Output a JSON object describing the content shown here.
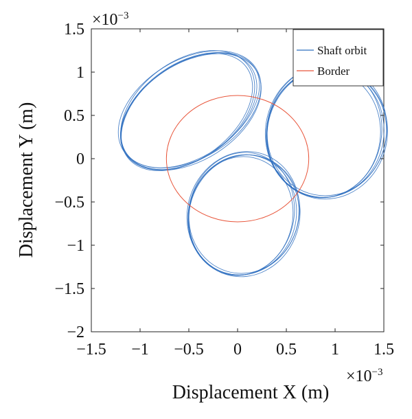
{
  "chart_data": {
    "type": "line",
    "xlabel": "Displacement X (m)",
    "ylabel": "Displacement Y (m)",
    "x_exponent_label": "×10",
    "x_exponent_power": "−3",
    "y_exponent_label": "×10",
    "y_exponent_power": "−3",
    "xlim": [
      -1.5,
      1.5
    ],
    "ylim": [
      -2,
      1.5
    ],
    "x_ticks": [
      -1.5,
      -1,
      -0.5,
      0,
      0.5,
      1,
      1.5
    ],
    "x_tick_labels": [
      "−1.5",
      "−1",
      "−0.5",
      "0",
      "0.5",
      "1",
      "1.5"
    ],
    "y_ticks": [
      -2,
      -1.5,
      -1,
      -0.5,
      0,
      0.5,
      1,
      1.5
    ],
    "y_tick_labels": [
      "−2",
      "−1.5",
      "−1",
      "−0.5",
      "0",
      "0.5",
      "1",
      "1.5"
    ],
    "grid": false,
    "legend_position": "top-right",
    "series": [
      {
        "name": "Shaft orbit",
        "color": "#2e6fbf",
        "description_loops": [
          {
            "center": [
              -0.5,
              0.55
            ],
            "rx": 0.78,
            "ry": 0.55,
            "rotation_deg": -35
          },
          {
            "center": [
              0.9,
              0.3
            ],
            "rx": 0.6,
            "ry": 0.75,
            "rotation_deg": 10
          },
          {
            "center": [
              0.05,
              -0.65
            ],
            "rx": 0.55,
            "ry": 0.7,
            "rotation_deg": 15
          }
        ]
      },
      {
        "name": "Border",
        "color": "#e8553a",
        "center": [
          0.0,
          0.0
        ],
        "radius_x": 0.73,
        "radius_y": 0.73
      }
    ]
  }
}
